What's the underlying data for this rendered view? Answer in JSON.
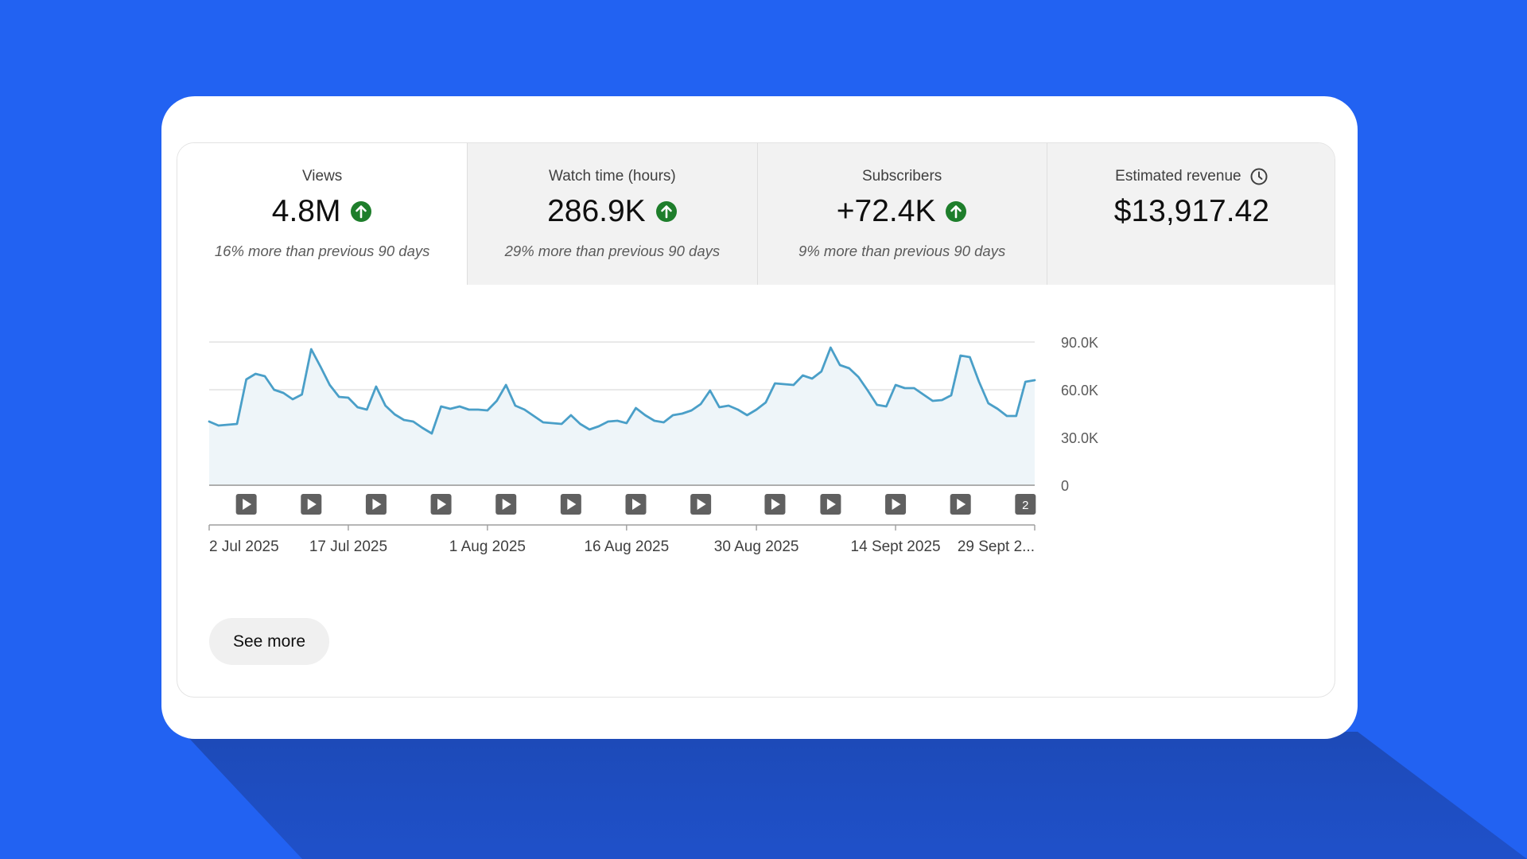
{
  "metrics": [
    {
      "label": "Views",
      "value": "4.8M",
      "trend": "up",
      "note": "16% more than previous 90 days"
    },
    {
      "label": "Watch time (hours)",
      "value": "286.9K",
      "trend": "up",
      "note": "29% more than previous 90 days"
    },
    {
      "label": "Subscribers",
      "value": "+72.4K",
      "trend": "up",
      "note": "9% more than previous 90 days"
    },
    {
      "label": "Estimated revenue",
      "value": "$13,917.42",
      "trend": "none",
      "note": "",
      "icon": "clock-icon"
    }
  ],
  "see_more_label": "See more",
  "colors": {
    "background": "#2262F2",
    "line": "#4A9FC8",
    "area": "#EEF5F9",
    "up_badge": "#1E7E2B",
    "video_marker": "#606060"
  },
  "chart_data": {
    "type": "area",
    "title": "",
    "xlabel": "",
    "ylabel": "",
    "ylim": [
      0,
      90000
    ],
    "y_ticks": [
      "90.0K",
      "60.0K",
      "30.0K",
      "0"
    ],
    "y_tick_values": [
      90000,
      60000,
      30000,
      0
    ],
    "x_tick_labels": [
      "2 Jul 2025",
      "17 Jul 2025",
      "1 Aug 2025",
      "16 Aug 2025",
      "30 Aug 2025",
      "14 Sept 2025",
      "29 Sept 2..."
    ],
    "x_tick_days": [
      0,
      15,
      30,
      45,
      59,
      74,
      89
    ],
    "grid": true,
    "series": [
      {
        "values": [
          40000,
          37500,
          38000,
          38500,
          66500,
          70000,
          68500,
          60000,
          58000,
          54000,
          57000,
          85500,
          74500,
          63000,
          55500,
          55000,
          49000,
          47500,
          62000,
          50000,
          44500,
          41000,
          40000,
          36000,
          32500,
          49500,
          48000,
          49500,
          47500,
          47500,
          47000,
          53000,
          63000,
          50000,
          47500,
          43500,
          39500,
          39000,
          38500,
          44000,
          38500,
          35000,
          37000,
          40000,
          40500,
          39000,
          48500,
          44000,
          40500,
          39500,
          44000,
          45000,
          47000,
          51000,
          59500,
          49000,
          50000,
          47500,
          44000,
          47500,
          52000,
          64000,
          63500,
          63000,
          69000,
          67000,
          71500,
          86500,
          75500,
          73500,
          68000,
          59500,
          50500,
          49500,
          63000,
          61000,
          61000,
          57000,
          53000,
          53500,
          56500,
          81500,
          80500,
          65000,
          51500,
          48000,
          43500,
          43500,
          65000,
          66000
        ]
      }
    ],
    "video_markers": [
      {
        "day": 4,
        "count": ""
      },
      {
        "day": 11,
        "count": ""
      },
      {
        "day": 18,
        "count": ""
      },
      {
        "day": 25,
        "count": ""
      },
      {
        "day": 32,
        "count": ""
      },
      {
        "day": 39,
        "count": ""
      },
      {
        "day": 46,
        "count": ""
      },
      {
        "day": 53,
        "count": ""
      },
      {
        "day": 61,
        "count": ""
      },
      {
        "day": 67,
        "count": ""
      },
      {
        "day": 74,
        "count": ""
      },
      {
        "day": 81,
        "count": ""
      },
      {
        "day": 88,
        "count": "2"
      }
    ]
  }
}
